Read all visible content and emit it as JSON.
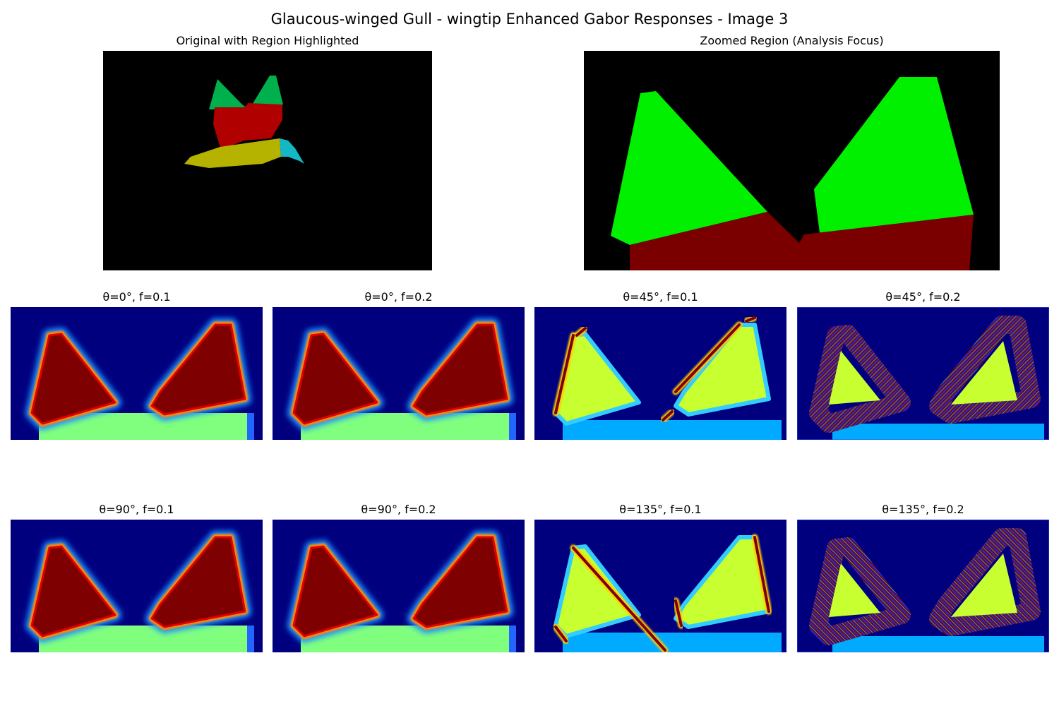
{
  "figure": {
    "title": "Glaucous-winged Gull - wingtip Enhanced Gabor Responses - Image 3",
    "original_panel": {
      "title": "Original with Region Highlighted"
    },
    "zoomed_panel": {
      "title": "Zoomed Region (Analysis Focus)"
    },
    "gabor_panels": [
      {
        "title": "θ=0°, f=0.1",
        "theta": 0,
        "frequency": 0.1
      },
      {
        "title": "θ=0°, f=0.2",
        "theta": 0,
        "frequency": 0.2
      },
      {
        "title": "θ=45°, f=0.1",
        "theta": 45,
        "frequency": 0.1
      },
      {
        "title": "θ=45°, f=0.2",
        "theta": 45,
        "frequency": 0.2
      },
      {
        "title": "θ=90°, f=0.1",
        "theta": 90,
        "frequency": 0.1
      },
      {
        "title": "θ=90°, f=0.2",
        "theta": 90,
        "frequency": 0.2
      },
      {
        "title": "θ=135°, f=0.1",
        "theta": 135,
        "frequency": 0.1
      },
      {
        "title": "θ=135°, f=0.2",
        "theta": 135,
        "frequency": 0.2
      }
    ]
  },
  "colors": {
    "background": "#000000",
    "segment_green": "#00b04c",
    "segment_red": "#b00000",
    "segment_yellow": "#b5b300",
    "segment_cyan": "#14b8c4",
    "zoom_green": "#00f000",
    "zoom_dark_red": "#7a0000",
    "jet_navy": "#00007f",
    "jet_dark_red": "#7f0000",
    "jet_green": "#80ff7f",
    "jet_yellow": "#c7ff30",
    "jet_sky": "#00aaff"
  }
}
